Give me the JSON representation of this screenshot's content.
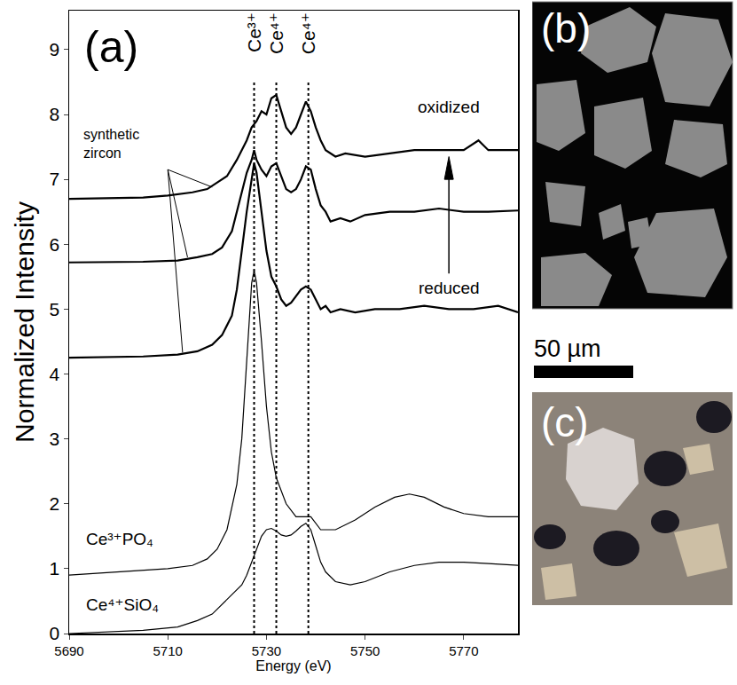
{
  "chart_data": {
    "type": "line",
    "panel_label": "(a)",
    "x_label": "Energy (eV)",
    "y_label": "Normalized Intensity",
    "xlim": [
      5690,
      5781
    ],
    "xticks": [
      5690,
      5710,
      5730,
      5750,
      5770
    ],
    "ylim": [
      0,
      9.6
    ],
    "yticks": [
      0,
      1,
      2,
      3,
      4,
      5,
      6,
      7,
      8,
      9
    ],
    "grid": false,
    "line_style": "solid",
    "reference_lines": [
      {
        "x": 5727.5,
        "label": "Ce³⁺"
      },
      {
        "x": 5732,
        "label": "Ce⁴⁺"
      },
      {
        "x": 5738.5,
        "label": "Ce⁴⁺"
      }
    ],
    "annotations": [
      "synthetic zircon",
      "oxidized",
      "reduced"
    ],
    "series": [
      {
        "color": "#000000",
        "x": [
          5690,
          5705,
          5712,
          5716,
          5719,
          5721,
          5723,
          5724,
          5725,
          5726,
          5727,
          5727.5,
          5728,
          5729,
          5730,
          5731,
          5732,
          5733,
          5734,
          5735,
          5736,
          5737,
          5738,
          5739,
          5740,
          5741,
          5742,
          5743,
          5745,
          5748,
          5752,
          5757,
          5762,
          5767,
          5772,
          5777,
          5781
        ],
        "values": [
          4.25,
          4.27,
          4.3,
          4.35,
          4.45,
          4.6,
          4.9,
          5.3,
          5.9,
          6.5,
          7.0,
          7.25,
          7.1,
          6.5,
          5.9,
          5.5,
          5.35,
          5.15,
          5.05,
          5.1,
          5.2,
          5.3,
          5.35,
          5.3,
          5.15,
          5.0,
          5.05,
          4.95,
          5.0,
          4.95,
          5.0,
          5.0,
          5.05,
          5.0,
          5.0,
          5.05,
          4.95
        ]
      },
      {
        "color": "#000000",
        "x": [
          5690,
          5705,
          5712,
          5716,
          5719,
          5721,
          5723,
          5724,
          5725,
          5726,
          5727,
          5727.5,
          5728,
          5729,
          5730,
          5731,
          5732,
          5733,
          5734,
          5735,
          5736,
          5737,
          5738,
          5739,
          5740,
          5741,
          5742,
          5743,
          5745,
          5747,
          5750,
          5755,
          5760,
          5765,
          5770,
          5775,
          5781
        ],
        "values": [
          5.72,
          5.73,
          5.75,
          5.8,
          5.85,
          5.95,
          6.2,
          6.5,
          6.8,
          7.1,
          7.3,
          7.45,
          7.3,
          7.15,
          7.05,
          7.2,
          7.25,
          7.05,
          6.85,
          6.8,
          6.85,
          7.0,
          7.2,
          7.15,
          6.85,
          6.6,
          6.5,
          6.35,
          6.4,
          6.35,
          6.45,
          6.5,
          6.5,
          6.55,
          6.5,
          6.5,
          6.52
        ]
      },
      {
        "color": "#000000",
        "x": [
          5690,
          5705,
          5710,
          5715,
          5718,
          5720,
          5722,
          5724,
          5726,
          5727,
          5728,
          5729,
          5730,
          5731,
          5732,
          5733,
          5734,
          5735,
          5736,
          5737,
          5738,
          5739,
          5740,
          5741,
          5742,
          5744,
          5746,
          5750,
          5755,
          5760,
          5765,
          5770,
          5773,
          5775,
          5781
        ],
        "values": [
          6.7,
          6.72,
          6.75,
          6.8,
          6.85,
          6.95,
          7.05,
          7.3,
          7.6,
          7.8,
          7.9,
          8.05,
          8.0,
          8.25,
          8.3,
          8.05,
          7.8,
          7.7,
          7.8,
          8.0,
          8.2,
          8.05,
          7.8,
          7.6,
          7.45,
          7.35,
          7.4,
          7.35,
          7.4,
          7.45,
          7.45,
          7.45,
          7.6,
          7.45,
          7.45
        ]
      },
      {
        "name": "Ce³⁺PO₄",
        "color": "#000000",
        "x": [
          5690,
          5700,
          5710,
          5715,
          5718,
          5720,
          5722,
          5724,
          5725,
          5726,
          5727,
          5727.5,
          5728,
          5729,
          5730,
          5731,
          5732,
          5734,
          5736,
          5738,
          5739,
          5741,
          5744,
          5748,
          5752,
          5756,
          5759,
          5762,
          5766,
          5770,
          5775,
          5781
        ],
        "values": [
          0.9,
          0.95,
          1.0,
          1.05,
          1.15,
          1.3,
          1.6,
          2.3,
          3.0,
          4.2,
          5.4,
          5.6,
          5.4,
          4.5,
          3.5,
          2.8,
          2.4,
          2.0,
          1.8,
          1.8,
          1.8,
          1.6,
          1.6,
          1.75,
          1.95,
          2.1,
          2.15,
          2.1,
          1.95,
          1.85,
          1.8,
          1.8
        ]
      },
      {
        "name": "Ce⁴⁺SiO₄",
        "color": "#000000",
        "x": [
          5690,
          5705,
          5712,
          5716,
          5719,
          5721,
          5723,
          5725,
          5726,
          5727,
          5728,
          5729,
          5730,
          5731,
          5732,
          5733,
          5734,
          5735,
          5736,
          5737,
          5738,
          5739,
          5740,
          5741,
          5742,
          5744,
          5747,
          5750,
          5755,
          5760,
          5765,
          5770,
          5775,
          5781
        ],
        "values": [
          0.0,
          0.05,
          0.1,
          0.2,
          0.3,
          0.45,
          0.6,
          0.75,
          0.9,
          1.1,
          1.3,
          1.5,
          1.6,
          1.62,
          1.58,
          1.52,
          1.5,
          1.52,
          1.58,
          1.65,
          1.7,
          1.6,
          1.35,
          1.1,
          0.95,
          0.8,
          0.75,
          0.8,
          0.95,
          1.05,
          1.1,
          1.1,
          1.08,
          1.05
        ]
      }
    ]
  },
  "panels": {
    "b": {
      "label": "(b)",
      "scale_bar": "50 µm"
    },
    "c": {
      "label": "(c)"
    }
  }
}
